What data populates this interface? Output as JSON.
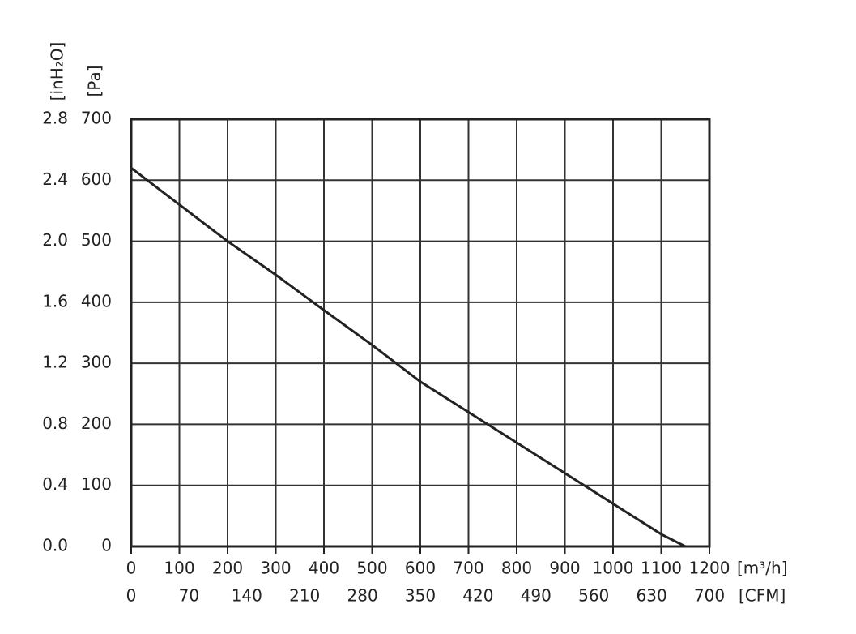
{
  "chart_data": {
    "type": "line",
    "x_label": "[m³/h]",
    "x2_label": "[CFM]",
    "y_label": "[Pa]",
    "y2_label": "[inH₂O]",
    "x": [
      0,
      100,
      200,
      300,
      400,
      500,
      600,
      700,
      800,
      900,
      1000,
      1100,
      1150
    ],
    "values": [
      620,
      560,
      500,
      445,
      387,
      330,
      270,
      220,
      170,
      120,
      70,
      20,
      0
    ],
    "color": "#222222",
    "xlim": [
      0,
      1200
    ],
    "xticks": [
      0,
      100,
      200,
      300,
      400,
      500,
      600,
      700,
      800,
      900,
      1000,
      1100,
      1200
    ],
    "x2lim": [
      0,
      700
    ],
    "x2ticks": [
      0,
      70,
      140,
      210,
      280,
      350,
      420,
      490,
      560,
      630,
      700
    ],
    "ylim": [
      0,
      700
    ],
    "yticks": [
      0,
      100,
      200,
      300,
      400,
      500,
      600,
      700
    ],
    "y2lim": [
      0,
      2.8
    ],
    "y2ticks": [
      {
        "value": 0,
        "label": "0.0"
      },
      0.4,
      0.8,
      1.2,
      1.6,
      {
        "value": 2,
        "label": "2.0"
      },
      2.4,
      2.8
    ],
    "grid": true
  }
}
